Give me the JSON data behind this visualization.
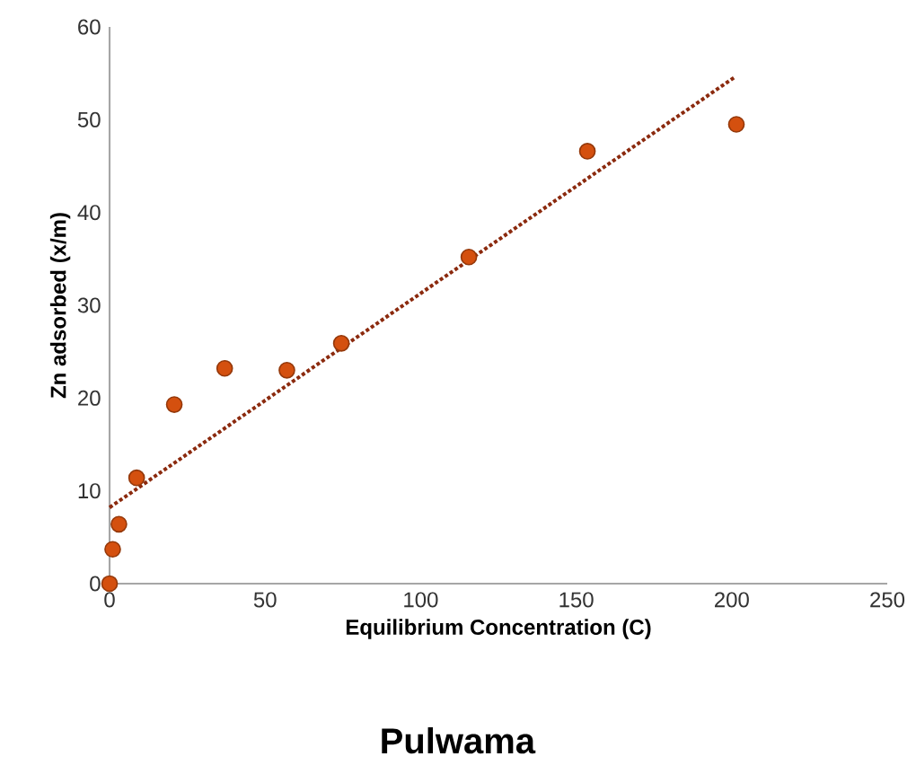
{
  "chart_data": {
    "type": "scatter",
    "title": "Pulwama",
    "xlabel": "Equilibrium Concentration (C)",
    "ylabel": "Zn adsorbed (x/m)",
    "xlim": [
      0,
      250
    ],
    "xticks": [
      0,
      50,
      100,
      150,
      200,
      250
    ],
    "ylim": [
      0,
      60
    ],
    "yticks": [
      0,
      10,
      20,
      30,
      40,
      50,
      60
    ],
    "marker": "circle",
    "series": [
      {
        "color": "#d4500f",
        "x": [
          0,
          1,
          3,
          8.7,
          20.8,
          37,
          57,
          74.5,
          115.5,
          153.6,
          201.5
        ],
        "values": [
          0,
          3.7,
          6.4,
          11.4,
          19.3,
          23.2,
          23,
          25.9,
          35.2,
          46.6,
          49.5
        ]
      },
      {
        "type": "line",
        "marker": "none",
        "color": "#8b2a0e",
        "line_style": "dotted",
        "x": [
          0,
          201
        ],
        "values": [
          8.2,
          54.6
        ]
      }
    ]
  }
}
